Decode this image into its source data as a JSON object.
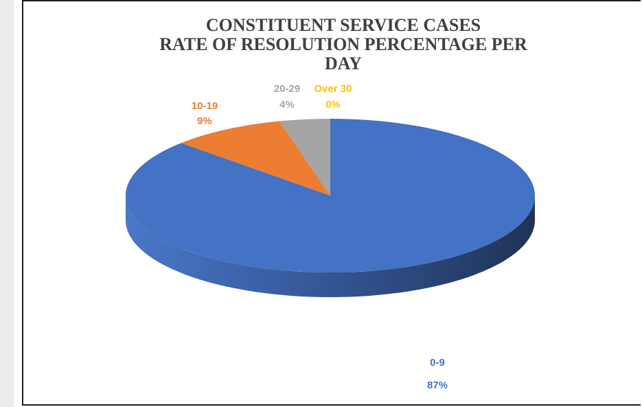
{
  "chart_data": {
    "type": "pie",
    "title_lines": [
      "CONSTITUENT SERVICE CASES",
      "RATE OF RESOLUTION PERCENTAGE PER",
      "DAY"
    ],
    "categories": [
      "0-9",
      "10-19",
      "20-29",
      "Over 30"
    ],
    "values": [
      87,
      9,
      4,
      0
    ],
    "value_labels": [
      "87%",
      "9%",
      "4%",
      "0%"
    ],
    "colors": [
      "#4472c4",
      "#ed7d31",
      "#a5a5a5",
      "#ffc000"
    ],
    "style": "3d"
  }
}
